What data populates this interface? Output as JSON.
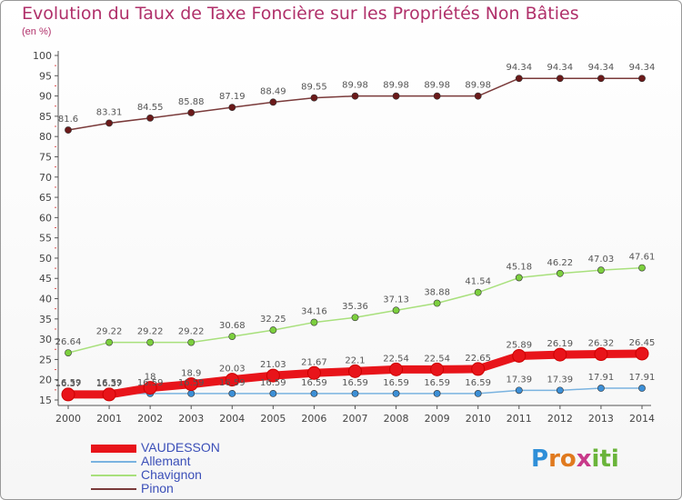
{
  "title": "Evolution du Taux de Taxe Foncière sur les Propriétés Non Bâties",
  "unit_label": "(en %)",
  "logo": {
    "letters": [
      "P",
      "r",
      "o",
      "x",
      "i",
      "t",
      "i"
    ],
    "colors": [
      "#2f8fd8",
      "#e07a1f",
      "#e07a1f",
      "#c83a8a",
      "#6ab43a",
      "#6ab43a",
      "#6ab43a"
    ]
  },
  "chart_data": {
    "type": "line",
    "title": "Evolution du Taux de Taxe Foncière sur les Propriétés Non Bâties",
    "ylabel": "(en %)",
    "xlabel": "",
    "ylim": [
      15,
      100
    ],
    "yticks": [
      15,
      20,
      25,
      30,
      35,
      40,
      45,
      50,
      55,
      60,
      65,
      70,
      75,
      80,
      85,
      90,
      95,
      100
    ],
    "x": [
      "2000",
      "2001",
      "2002",
      "2003",
      "2004",
      "2005",
      "2006",
      "2007",
      "2008",
      "2009",
      "2010",
      "2011",
      "2012",
      "2013",
      "2014"
    ],
    "grid": false,
    "legend_position": "bottom-left",
    "series": [
      {
        "name": "VAUDESSON",
        "color": "#e8141a",
        "line_color": "#e8141a",
        "thick": true,
        "values": [
          16.37,
          16.37,
          18,
          18.9,
          20.03,
          21.03,
          21.67,
          22.1,
          22.54,
          22.54,
          22.65,
          25.89,
          26.19,
          26.32,
          26.45
        ],
        "labels": [
          "16.37",
          "16.37",
          "18",
          "18.9",
          "20.03",
          "21.03",
          "21.67",
          "22.1",
          "22.54",
          "22.54",
          "22.65",
          "25.89",
          "26.19",
          "26.32",
          "26.45"
        ]
      },
      {
        "name": "Allemant",
        "color": "#3c8fd6",
        "line_color": "#7ab3e0",
        "thick": false,
        "values": [
          16.59,
          16.59,
          16.59,
          16.59,
          16.59,
          16.59,
          16.59,
          16.59,
          16.59,
          16.59,
          16.59,
          17.39,
          17.39,
          17.91,
          17.91
        ],
        "labels": [
          "16.59",
          "16.59",
          "16.59",
          "16.59",
          "16.59",
          "16.59",
          "16.59",
          "16.59",
          "16.59",
          "16.59",
          "16.59",
          "17.39",
          "17.39",
          "17.91",
          "17.91"
        ]
      },
      {
        "name": "Chavignon",
        "color": "#7ccf3e",
        "line_color": "#a8e07c",
        "thick": false,
        "values": [
          26.64,
          29.22,
          29.22,
          29.22,
          30.68,
          32.25,
          34.16,
          35.36,
          37.13,
          38.88,
          41.54,
          45.18,
          46.22,
          47.03,
          47.61
        ],
        "labels": [
          "26.64",
          "29.22",
          "29.22",
          "29.22",
          "30.68",
          "32.25",
          "34.16",
          "35.36",
          "37.13",
          "38.88",
          "41.54",
          "45.18",
          "46.22",
          "47.03",
          "47.61"
        ]
      },
      {
        "name": "Pinon",
        "color": "#6b1a1a",
        "line_color": "#7a3a3a",
        "thick": false,
        "values": [
          81.6,
          83.31,
          84.55,
          85.88,
          87.19,
          88.49,
          89.55,
          89.98,
          89.98,
          89.98,
          89.98,
          94.34,
          94.34,
          94.34,
          94.34
        ],
        "labels": [
          "81.6",
          "83.31",
          "84.55",
          "85.88",
          "87.19",
          "88.49",
          "89.55",
          "89.98",
          "89.98",
          "89.98",
          "89.98",
          "94.34",
          "94.34",
          "94.34",
          "94.34"
        ]
      }
    ]
  }
}
